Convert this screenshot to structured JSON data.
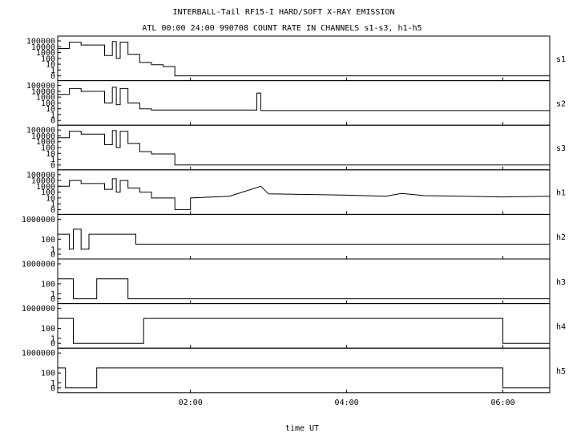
{
  "chart_data": {
    "type": "line",
    "title": "INTERBALL-Tail RF15-I HARD/SOFT X-RAY EMISSION",
    "subtitle": "ATL 00:00 24:00 990708  COUNT RATE IN CHANNELS s1-s3, h1-h5",
    "xlabel": "time UT",
    "x_unit": "hours UT",
    "xlim": [
      0.3,
      6.6
    ],
    "x_ticks": [
      {
        "value": 2,
        "label": "02:00"
      },
      {
        "value": 4,
        "label": "04:00"
      },
      {
        "value": 6,
        "label": "06:00"
      }
    ],
    "y_scale": "log",
    "grid": false,
    "panels": [
      {
        "name": "s1",
        "ylim": [
          0,
          100000
        ],
        "y_ticks": [
          "100000",
          "10000",
          "1000",
          "100",
          "10",
          "1",
          "0"
        ],
        "series": [
          {
            "x": [
              0.3,
              0.45,
              0.45,
              0.6,
              0.6,
              0.9,
              0.9,
              1.0,
              1.0,
              1.05,
              1.05,
              1.1,
              1.1,
              1.2,
              1.2,
              1.35,
              1.35,
              1.5,
              1.5,
              1.65,
              1.65,
              1.8,
              1.8,
              6.6
            ],
            "y": [
              5000,
              5000,
              60000,
              60000,
              20000,
              20000,
              300,
              300,
              80000,
              80000,
              100,
              100,
              60000,
              60000,
              500,
              500,
              20,
              20,
              8,
              8,
              4,
              4,
              0,
              0
            ]
          }
        ]
      },
      {
        "name": "s2",
        "ylim": [
          0,
          100000
        ],
        "y_ticks": [
          "100000",
          "10000",
          "1000",
          "100",
          "10",
          "1",
          "0"
        ],
        "series": [
          {
            "x": [
              0.3,
              0.45,
              0.45,
              0.6,
              0.6,
              0.9,
              0.9,
              1.0,
              1.0,
              1.05,
              1.05,
              1.1,
              1.1,
              1.2,
              1.2,
              1.35,
              1.35,
              1.5,
              1.5,
              2.85,
              2.85,
              2.9,
              2.9,
              3.0,
              3.0,
              6.6
            ],
            "y": [
              3000,
              3000,
              30000,
              30000,
              10000,
              10000,
              100,
              100,
              50000,
              50000,
              50,
              50,
              30000,
              30000,
              100,
              100,
              10,
              10,
              6,
              6,
              5000,
              5000,
              5,
              5,
              5,
              5
            ]
          }
        ]
      },
      {
        "name": "s3",
        "ylim": [
          0,
          100000
        ],
        "y_ticks": [
          "100000",
          "10000",
          "1000",
          "100",
          "10",
          "1",
          "0"
        ],
        "series": [
          {
            "x": [
              0.3,
              0.45,
              0.45,
              0.6,
              0.6,
              0.9,
              0.9,
              1.0,
              1.0,
              1.05,
              1.05,
              1.1,
              1.1,
              1.2,
              1.2,
              1.35,
              1.35,
              1.5,
              1.5,
              1.8,
              1.8,
              6.6
            ],
            "y": [
              5000,
              5000,
              60000,
              60000,
              20000,
              20000,
              300,
              300,
              80000,
              80000,
              100,
              100,
              60000,
              60000,
              500,
              500,
              20,
              20,
              8,
              8,
              0,
              0
            ]
          }
        ]
      },
      {
        "name": "h1",
        "ylim": [
          0,
          100000
        ],
        "y_ticks": [
          "100000",
          "10000",
          "1000",
          "100",
          "10",
          "1",
          "0"
        ],
        "series": [
          {
            "x": [
              0.3,
              0.45,
              0.45,
              0.6,
              0.6,
              0.9,
              0.9,
              1.0,
              1.0,
              1.05,
              1.05,
              1.1,
              1.1,
              1.2,
              1.2,
              1.35,
              1.35,
              1.5,
              1.5,
              1.8,
              1.8,
              2.0,
              2.0,
              2.5,
              2.9,
              3.0,
              3.5,
              4.0,
              4.5,
              4.7,
              5.0,
              5.5,
              6.0,
              6.6
            ],
            "y": [
              1000,
              1000,
              10000,
              10000,
              3000,
              3000,
              300,
              300,
              20000,
              20000,
              100,
              100,
              10000,
              10000,
              500,
              500,
              100,
              100,
              10,
              10,
              0,
              0,
              10,
              20,
              1000,
              50,
              40,
              30,
              20,
              60,
              25,
              20,
              15,
              20
            ]
          }
        ]
      },
      {
        "name": "h2",
        "ylim": [
          0,
          1000000
        ],
        "y_ticks": [
          "1000000",
          "100",
          "1",
          "0"
        ],
        "series": [
          {
            "x": [
              0.3,
              0.45,
              0.45,
              0.5,
              0.5,
              0.6,
              0.6,
              0.7,
              0.7,
              1.3,
              1.3,
              6.6
            ],
            "y": [
              1000,
              1000,
              1,
              1,
              10000,
              10000,
              1,
              1,
              1000,
              1000,
              10,
              10
            ]
          }
        ]
      },
      {
        "name": "h3",
        "ylim": [
          0,
          1000000
        ],
        "y_ticks": [
          "1000000",
          "100",
          "1",
          "0"
        ],
        "series": [
          {
            "x": [
              0.3,
              0.5,
              0.5,
              0.8,
              0.8,
              1.2,
              1.2,
              6.6
            ],
            "y": [
              1000,
              1000,
              0,
              0,
              1000,
              1000,
              0,
              0
            ]
          }
        ]
      },
      {
        "name": "h4",
        "ylim": [
          0,
          1000000
        ],
        "y_ticks": [
          "1000000",
          "100",
          "1",
          "0"
        ],
        "series": [
          {
            "x": [
              0.3,
              0.5,
              0.5,
              1.4,
              1.4,
              6.0,
              6.0,
              6.6
            ],
            "y": [
              10000,
              10000,
              0,
              0,
              10000,
              10000,
              0,
              0
            ]
          }
        ]
      },
      {
        "name": "h5",
        "ylim": [
          0,
          1000000
        ],
        "y_ticks": [
          "1000000",
          "100",
          "1",
          "0"
        ],
        "series": [
          {
            "x": [
              0.3,
              0.4,
              0.4,
              0.8,
              0.8,
              6.0,
              6.0,
              6.6
            ],
            "y": [
              1000,
              1000,
              0,
              0,
              1000,
              1000,
              0,
              0
            ]
          }
        ]
      }
    ]
  }
}
